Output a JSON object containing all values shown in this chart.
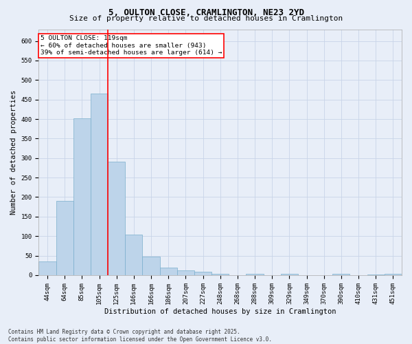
{
  "title_line1": "5, OULTON CLOSE, CRAMLINGTON, NE23 2YD",
  "title_line2": "Size of property relative to detached houses in Cramlington",
  "xlabel": "Distribution of detached houses by size in Cramlington",
  "ylabel": "Number of detached properties",
  "footnote": "Contains HM Land Registry data © Crown copyright and database right 2025.\nContains public sector information licensed under the Open Government Licence v3.0.",
  "bar_labels": [
    "44sqm",
    "64sqm",
    "85sqm",
    "105sqm",
    "125sqm",
    "146sqm",
    "166sqm",
    "186sqm",
    "207sqm",
    "227sqm",
    "248sqm",
    "268sqm",
    "288sqm",
    "309sqm",
    "329sqm",
    "349sqm",
    "370sqm",
    "390sqm",
    "410sqm",
    "431sqm",
    "451sqm"
  ],
  "bar_values": [
    35,
    190,
    401,
    465,
    291,
    104,
    48,
    20,
    13,
    8,
    4,
    0,
    3,
    0,
    4,
    0,
    0,
    3,
    0,
    2,
    3
  ],
  "bar_color": "#bdd4ea",
  "bar_edgecolor": "#7aaecc",
  "grid_color": "#c8d4e8",
  "bg_color": "#e8eef8",
  "vline_color": "red",
  "annotation_text": "5 OULTON CLOSE: 119sqm\n← 60% of detached houses are smaller (943)\n39% of semi-detached houses are larger (614) →",
  "annotation_box_color": "white",
  "annotation_box_edgecolor": "red",
  "ylim": [
    0,
    630
  ],
  "yticks": [
    0,
    50,
    100,
    150,
    200,
    250,
    300,
    350,
    400,
    450,
    500,
    550,
    600
  ],
  "title1_fontsize": 9,
  "title2_fontsize": 8,
  "tick_fontsize": 6.5,
  "label_fontsize": 7.5,
  "footnote_fontsize": 5.5,
  "ann_fontsize": 6.8
}
